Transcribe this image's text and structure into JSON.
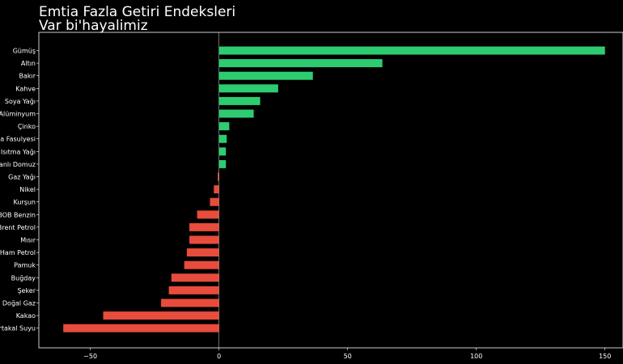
{
  "chart_data": {
    "type": "bar",
    "orientation": "horizontal",
    "title": "Emtia Fazla Getiri Endeksleri",
    "subtitle": "Var bi'hayalimiz",
    "categories": [
      "Gümüş",
      "Altın",
      "Bakır",
      "Kahve",
      "Soya Yağı",
      "Alüminyum",
      "Çinko",
      "Soya Fasulyesi",
      "Isıtma Yağı",
      "Canlı Domuz",
      "Gaz Yağı",
      "Nikel",
      "Kurşun",
      "RBOB Benzin",
      "Brent Petrol",
      "Mısır",
      "Ham Petrol",
      "Pamuk",
      "Buğday",
      "Şeker",
      "Doğal Gaz",
      "Kakao",
      "Portakal Suyu"
    ],
    "values": [
      150,
      63.5,
      36.5,
      23,
      16,
      13.5,
      4,
      3,
      2.7,
      2.7,
      -0.5,
      -2,
      -3.5,
      -8.5,
      -11.5,
      -11.5,
      -12.5,
      -13.5,
      -18.5,
      -19.5,
      -22.5,
      -45,
      -60.5
    ],
    "xlim": [
      -70,
      157
    ],
    "xticks": [
      -50,
      0,
      50,
      100,
      150
    ],
    "xtick_labels": [
      "−50",
      "0",
      "50",
      "100",
      "150"
    ],
    "positive_color": "#2ecc71",
    "negative_color": "#e74c3c",
    "background": "#000000",
    "text_color": "#ffffff",
    "grid": false
  }
}
